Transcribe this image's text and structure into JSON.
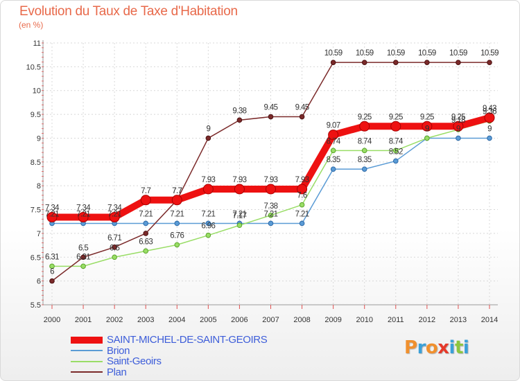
{
  "title": "Evolution du Taux de Taxe d'Habitation",
  "subtitle": "(en %)",
  "logo": {
    "letters": [
      "P",
      "r",
      "o",
      "x",
      "i",
      "t",
      "i"
    ],
    "colors": [
      "#f0902e",
      "#3aa0d8",
      "#f0902e",
      "#e63a2a",
      "#3aa0d8",
      "#8cc63f",
      "#3aa0d8"
    ]
  },
  "chart_data": {
    "type": "line",
    "title": "Evolution du Taux de Taxe d'Habitation",
    "ylabel": "(en %)",
    "xlabel": "",
    "ylim": [
      5.5,
      11
    ],
    "yticks": [
      "5.5",
      "6",
      "6.5",
      "7",
      "7.5",
      "8",
      "8.5",
      "9",
      "9.5",
      "10",
      "10.5",
      "11"
    ],
    "x": [
      "2000",
      "2001",
      "2002",
      "2003",
      "2004",
      "2005",
      "2006",
      "2007",
      "2008",
      "2009",
      "2010",
      "2011",
      "2012",
      "2013",
      "2014"
    ],
    "grid": true,
    "legend_position": "bottom-left",
    "series": [
      {
        "name": "SAINT-MICHEL-DE-SAINT-GEOIRS",
        "color": "#ee1111",
        "values": [
          7.34,
          7.34,
          7.34,
          7.7,
          7.7,
          7.93,
          7.93,
          7.93,
          7.93,
          9.07,
          9.25,
          9.25,
          9.25,
          9.25,
          9.43
        ],
        "labels": [
          "7.34",
          "7.34",
          "7.34",
          "7.7",
          "7.7",
          "7.93",
          "7.93",
          "7.93",
          "7.93",
          "9.07",
          "9.25",
          "9.25",
          "9.25",
          "9.25",
          "9.43"
        ]
      },
      {
        "name": "Brion",
        "color": "#5a9bd5",
        "values": [
          7.21,
          7.21,
          7.21,
          7.21,
          7.21,
          7.21,
          7.21,
          7.21,
          7.21,
          8.35,
          8.35,
          8.52,
          9,
          9,
          9
        ],
        "labels": [
          "7.21",
          "7.21",
          "7.21",
          "7.21",
          "7.21",
          "7.21",
          "7.21",
          "7.21",
          "7.21",
          "8.35",
          "8.35",
          "8.52",
          "9",
          "9",
          "9"
        ]
      },
      {
        "name": "Saint-Geoirs",
        "color": "#99dd66",
        "values": [
          6.31,
          6.31,
          6.5,
          6.63,
          6.76,
          6.96,
          7.17,
          7.38,
          7.6,
          8.74,
          8.74,
          8.74,
          9,
          9.18,
          9.36
        ],
        "labels": [
          "6.31",
          "6.31",
          "6.5",
          "6.63",
          "6.76",
          "6.96",
          "7.17",
          "7.38",
          "7.6",
          "8.74",
          "8.74",
          "8.74",
          "9",
          "9.18",
          "9.36"
        ]
      },
      {
        "name": "Plan",
        "color": "#7b2a2a",
        "values": [
          6,
          6.5,
          6.71,
          7,
          7.7,
          9,
          9.38,
          9.45,
          9.45,
          10.59,
          10.59,
          10.59,
          10.59,
          10.59,
          10.59
        ],
        "labels": [
          "6",
          "6.5",
          "6.71",
          "",
          "7.7",
          "9",
          "9.38",
          "9.45",
          "9.45",
          "10.59",
          "10.59",
          "10.59",
          "10.59",
          "10.59",
          "10.59"
        ]
      }
    ]
  }
}
